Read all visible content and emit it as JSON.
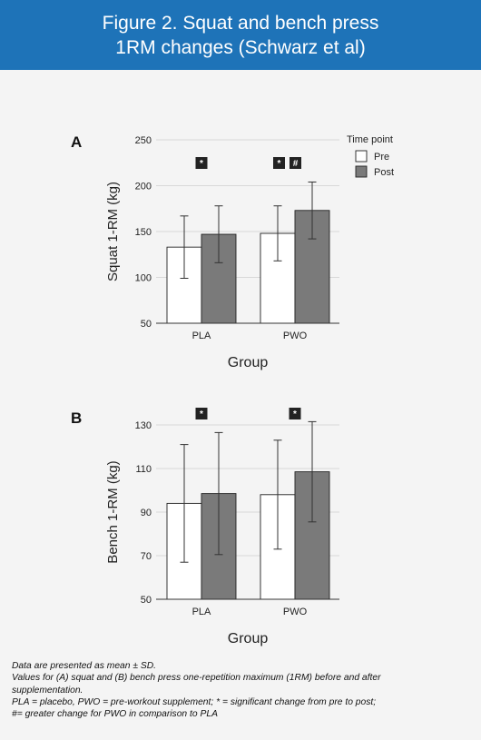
{
  "header": {
    "title_line1": "Figure 2. Squat and bench press",
    "title_line2": "1RM changes (Schwarz et al)"
  },
  "colors": {
    "header_bg": "#1e73b8",
    "pre_fill": "#ffffff",
    "post_fill": "#7a7a7a",
    "marker_bg": "#222222"
  },
  "chart_data": [
    {
      "panel": "A",
      "type": "bar",
      "categories": [
        "PLA",
        "PWO"
      ],
      "xlabel": "Group",
      "ylabel": "Squat 1-RM (kg)",
      "ylim": [
        50,
        250
      ],
      "yticks": [
        50,
        100,
        150,
        200,
        250
      ],
      "grid": true,
      "legend": {
        "title": "Time point",
        "placement": "top-right",
        "entries": [
          "Pre",
          "Post"
        ]
      },
      "series": [
        {
          "name": "Pre",
          "values": [
            133,
            148
          ],
          "error": [
            34,
            30
          ]
        },
        {
          "name": "Post",
          "values": [
            147,
            173
          ],
          "error": [
            31,
            31
          ]
        }
      ],
      "markers": [
        {
          "category": "PLA",
          "symbols": [
            "*"
          ]
        },
        {
          "category": "PWO",
          "symbols": [
            "*",
            "#"
          ]
        }
      ]
    },
    {
      "panel": "B",
      "type": "bar",
      "categories": [
        "PLA",
        "PWO"
      ],
      "xlabel": "Group",
      "ylabel": "Bench 1-RM (kg)",
      "ylim": [
        50,
        130
      ],
      "yticks": [
        50,
        70,
        90,
        110,
        130
      ],
      "grid": true,
      "series": [
        {
          "name": "Pre",
          "values": [
            94,
            98
          ],
          "error": [
            27,
            25
          ]
        },
        {
          "name": "Post",
          "values": [
            98.5,
            108.5
          ],
          "error": [
            28,
            23
          ]
        }
      ],
      "markers": [
        {
          "category": "PLA",
          "symbols": [
            "*"
          ]
        },
        {
          "category": "PWO",
          "symbols": [
            "*"
          ]
        }
      ]
    }
  ],
  "footnotes": [
    "Data are presented as mean ± SD.",
    "Values for (A) squat and (B) bench press one-repetition maximum (1RM) before and after",
    "supplementation.",
    "PLA = placebo, PWO = pre-workout supplement; * = significant change from pre to post;",
    "#= greater change for PWO in comparison to PLA"
  ]
}
